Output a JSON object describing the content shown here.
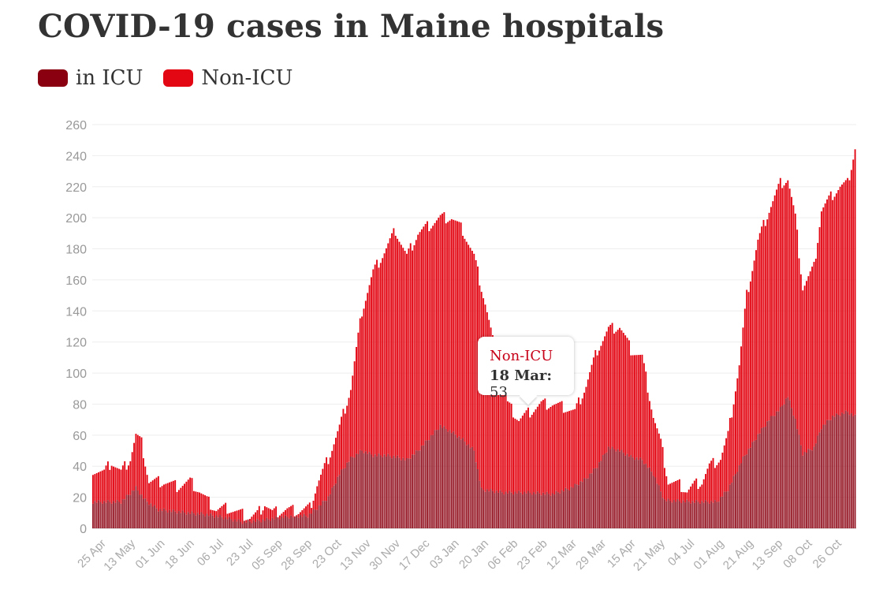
{
  "title": "COVID-19 cases in Maine hospitals",
  "legend": [
    {
      "label": "in ICU",
      "color": "#8b0010"
    },
    {
      "label": "Non-ICU",
      "color": "#e30613"
    }
  ],
  "tooltip": {
    "series": "Non-ICU",
    "date": "18 Mar",
    "value": "53"
  },
  "chart_data": {
    "type": "bar",
    "stacked": true,
    "title": "COVID-19 cases in Maine hospitals",
    "ylim": [
      0,
      260
    ],
    "yticks": [
      0,
      20,
      40,
      60,
      80,
      100,
      120,
      140,
      160,
      180,
      200,
      220,
      240,
      260
    ],
    "xtick_labels": [
      "25 Apr",
      "13 May",
      "01 Jun",
      "18 Jun",
      "06 Jul",
      "23 Jul",
      "05 Sep",
      "28 Sep",
      "23 Oct",
      "13 Nov",
      "30 Nov",
      "17 Dec",
      "03 Jan",
      "20 Jan",
      "06 Feb",
      "23 Feb",
      "12 Mar",
      "29 Mar",
      "15 Apr",
      "21 May",
      "04 Jul",
      "01 Aug",
      "21 Aug",
      "13 Sep",
      "08 Oct",
      "26 Oct"
    ],
    "series_colors": {
      "icu": "#8b0010",
      "non_icu": "#e30613"
    },
    "total_keyframes": [
      [
        0,
        38
      ],
      [
        6,
        36
      ],
      [
        10,
        43
      ],
      [
        15,
        36
      ],
      [
        20,
        45
      ],
      [
        23,
        60
      ],
      [
        26,
        55
      ],
      [
        30,
        30
      ],
      [
        38,
        30
      ],
      [
        45,
        27
      ],
      [
        52,
        30
      ],
      [
        57,
        24
      ],
      [
        61,
        18
      ],
      [
        66,
        12
      ],
      [
        72,
        13
      ],
      [
        78,
        10
      ],
      [
        84,
        7
      ],
      [
        88,
        9
      ],
      [
        92,
        16
      ],
      [
        96,
        10
      ],
      [
        104,
        12
      ],
      [
        110,
        11
      ],
      [
        116,
        13
      ],
      [
        120,
        28
      ],
      [
        126,
        45
      ],
      [
        132,
        65
      ],
      [
        138,
        90
      ],
      [
        144,
        140
      ],
      [
        150,
        165
      ],
      [
        156,
        178
      ],
      [
        162,
        192
      ],
      [
        168,
        175
      ],
      [
        174,
        190
      ],
      [
        180,
        195
      ],
      [
        186,
        200
      ],
      [
        192,
        200
      ],
      [
        198,
        192
      ],
      [
        204,
        175
      ],
      [
        210,
        145
      ],
      [
        216,
        110
      ],
      [
        222,
        80
      ],
      [
        228,
        70
      ],
      [
        234,
        75
      ],
      [
        240,
        80
      ],
      [
        246,
        80
      ],
      [
        252,
        78
      ],
      [
        258,
        75
      ],
      [
        264,
        92
      ],
      [
        270,
        115
      ],
      [
        276,
        128
      ],
      [
        282,
        130
      ],
      [
        288,
        115
      ],
      [
        294,
        110
      ],
      [
        300,
        72
      ],
      [
        304,
        55
      ],
      [
        308,
        30
      ],
      [
        314,
        28
      ],
      [
        318,
        24
      ],
      [
        322,
        28
      ],
      [
        326,
        30
      ],
      [
        330,
        40
      ],
      [
        336,
        45
      ],
      [
        340,
        60
      ],
      [
        346,
        105
      ],
      [
        350,
        150
      ],
      [
        356,
        185
      ],
      [
        362,
        205
      ],
      [
        368,
        222
      ],
      [
        372,
        225
      ],
      [
        376,
        200
      ],
      [
        380,
        155
      ],
      [
        386,
        168
      ],
      [
        390,
        205
      ],
      [
        396,
        215
      ],
      [
        400,
        220
      ],
      [
        404,
        222
      ],
      [
        408,
        245
      ]
    ],
    "icu_keyframes": [
      [
        0,
        17
      ],
      [
        15,
        17
      ],
      [
        23,
        26
      ],
      [
        28,
        18
      ],
      [
        35,
        12
      ],
      [
        50,
        10
      ],
      [
        60,
        9
      ],
      [
        70,
        7
      ],
      [
        80,
        4
      ],
      [
        90,
        5
      ],
      [
        100,
        7
      ],
      [
        110,
        8
      ],
      [
        115,
        8
      ],
      [
        120,
        13
      ],
      [
        126,
        20
      ],
      [
        132,
        35
      ],
      [
        138,
        45
      ],
      [
        144,
        50
      ],
      [
        150,
        47
      ],
      [
        156,
        47
      ],
      [
        162,
        46
      ],
      [
        168,
        44
      ],
      [
        174,
        50
      ],
      [
        180,
        58
      ],
      [
        186,
        66
      ],
      [
        192,
        62
      ],
      [
        198,
        57
      ],
      [
        204,
        50
      ],
      [
        208,
        25
      ],
      [
        220,
        23
      ],
      [
        232,
        23
      ],
      [
        246,
        22
      ],
      [
        256,
        26
      ],
      [
        264,
        32
      ],
      [
        270,
        40
      ],
      [
        276,
        52
      ],
      [
        282,
        50
      ],
      [
        288,
        46
      ],
      [
        294,
        44
      ],
      [
        300,
        35
      ],
      [
        306,
        18
      ],
      [
        322,
        17
      ],
      [
        334,
        17
      ],
      [
        340,
        25
      ],
      [
        348,
        45
      ],
      [
        356,
        60
      ],
      [
        362,
        70
      ],
      [
        368,
        77
      ],
      [
        372,
        85
      ],
      [
        376,
        70
      ],
      [
        380,
        48
      ],
      [
        386,
        52
      ],
      [
        390,
        65
      ],
      [
        396,
        72
      ],
      [
        404,
        75
      ],
      [
        408,
        72
      ]
    ]
  }
}
